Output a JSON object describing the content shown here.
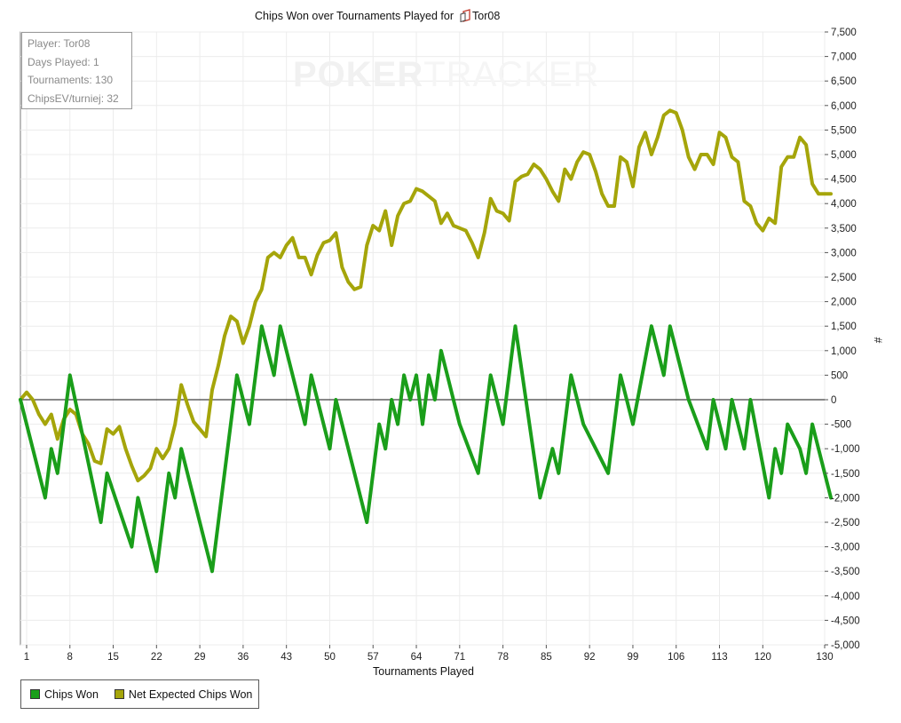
{
  "chart_data": {
    "type": "line",
    "title": "Chips Won over Tournaments Played for",
    "title_player": "Tor08",
    "watermark": {
      "part1": "POKER",
      "part2": "TRACKER"
    },
    "xlabel": "Tournaments Played",
    "ylabel": "#",
    "x_ticks": [
      1,
      8,
      15,
      22,
      29,
      36,
      43,
      50,
      57,
      64,
      71,
      78,
      85,
      92,
      99,
      106,
      113,
      120,
      130
    ],
    "xlim": [
      0,
      130
    ],
    "ylim": [
      -5000,
      7500
    ],
    "y_ticks": [
      -5000,
      -4500,
      -4000,
      -3500,
      -3000,
      -2500,
      -2000,
      -1500,
      -1000,
      -500,
      0,
      500,
      1000,
      1500,
      2000,
      2500,
      3000,
      3500,
      4000,
      4500,
      5000,
      5500,
      6000,
      6500,
      7000,
      7500
    ],
    "y_tick_labels": [
      "-5,000",
      "-4,500",
      "-4,000",
      "-3,500",
      "-3,000",
      "-2,500",
      "-2,000",
      "-1,500",
      "-1,000",
      "-500",
      "0",
      "500",
      "1,000",
      "1,500",
      "2,000",
      "2,500",
      "3,000",
      "3,500",
      "4,000",
      "4,500",
      "5,000",
      "5,500",
      "6,000",
      "6,500",
      "7,000",
      "7,500"
    ],
    "grid": true,
    "legend_position": "bottom-left",
    "info": {
      "player": "Player: Tor08",
      "days": "Days Played: 1",
      "tournaments": "Tournaments: 130",
      "chipsev": "ChipsEV/turniej: 32"
    },
    "series": [
      {
        "name": "Chips Won",
        "color": "#1a9e1a",
        "x": [
          0,
          4,
          5,
          6,
          8,
          13,
          14,
          18,
          19,
          22,
          24,
          25,
          26,
          31,
          35,
          37,
          39,
          41,
          42,
          46,
          47,
          50,
          51,
          56,
          58,
          59,
          60,
          61,
          62,
          63,
          64,
          65,
          66,
          67,
          68,
          69,
          70,
          71,
          74,
          76,
          78,
          80,
          84,
          86,
          87,
          89,
          91,
          95,
          97,
          99,
          102,
          104,
          105,
          108,
          111,
          112,
          114,
          115,
          117,
          118,
          121,
          122,
          123,
          124,
          126,
          127,
          128,
          131
        ],
        "y": [
          0,
          -2000,
          -1000,
          -1500,
          500,
          -2500,
          -1500,
          -3000,
          -2000,
          -3500,
          -1500,
          -2000,
          -1000,
          -3500,
          500,
          -500,
          1500,
          500,
          1500,
          -500,
          500,
          -1000,
          0,
          -2500,
          -500,
          -1000,
          0,
          -500,
          500,
          0,
          500,
          -500,
          500,
          0,
          1000,
          500,
          0,
          -500,
          -1500,
          500,
          -500,
          1500,
          -2000,
          -1000,
          -1500,
          500,
          -500,
          -1500,
          500,
          -500,
          1500,
          500,
          1500,
          0,
          -1000,
          0,
          -1000,
          0,
          -1000,
          0,
          -2000,
          -1000,
          -1500,
          -500,
          -1000,
          -1500,
          -500,
          -2000
        ]
      },
      {
        "name": "Net Expected Chips Won",
        "color": "#a5a50a",
        "x": [
          0,
          1,
          2,
          3,
          4,
          5,
          6,
          7,
          8,
          9,
          10,
          11,
          12,
          13,
          14,
          15,
          16,
          17,
          18,
          19,
          20,
          21,
          22,
          23,
          24,
          25,
          26,
          27,
          28,
          29,
          30,
          31,
          32,
          33,
          34,
          35,
          36,
          37,
          38,
          39,
          40,
          41,
          42,
          43,
          44,
          45,
          46,
          47,
          48,
          49,
          50,
          51,
          52,
          53,
          54,
          55,
          56,
          57,
          58,
          59,
          60,
          61,
          62,
          63,
          64,
          65,
          66,
          67,
          68,
          69,
          70,
          71,
          72,
          73,
          74,
          75,
          76,
          77,
          78,
          79,
          80,
          81,
          82,
          83,
          84,
          85,
          86,
          87,
          88,
          89,
          90,
          91,
          92,
          93,
          94,
          95,
          96,
          97,
          98,
          99,
          100,
          101,
          102,
          103,
          104,
          105,
          106,
          107,
          108,
          109,
          110,
          111,
          112,
          113,
          114,
          115,
          116,
          117,
          118,
          119,
          120,
          121,
          122,
          123,
          124,
          125,
          126,
          127,
          128,
          129,
          130,
          131
        ],
        "y": [
          0,
          150,
          0,
          -300,
          -500,
          -300,
          -800,
          -400,
          -200,
          -300,
          -700,
          -900,
          -1250,
          -1300,
          -600,
          -700,
          -550,
          -1000,
          -1350,
          -1650,
          -1550,
          -1400,
          -1000,
          -1200,
          -1000,
          -500,
          300,
          -100,
          -450,
          -600,
          -750,
          200,
          700,
          1300,
          1700,
          1600,
          1150,
          1500,
          2000,
          2250,
          2900,
          3000,
          2900,
          3150,
          3300,
          2900,
          2900,
          2550,
          2950,
          3200,
          3250,
          3400,
          2700,
          2400,
          2250,
          2300,
          3150,
          3550,
          3450,
          3850,
          3150,
          3750,
          4000,
          4050,
          4300,
          4250,
          4150,
          4050,
          3600,
          3800,
          3550,
          3500,
          3450,
          3200,
          2900,
          3400,
          4100,
          3850,
          3800,
          3650,
          4450,
          4550,
          4600,
          4800,
          4700,
          4500,
          4250,
          4050,
          4700,
          4500,
          4850,
          5050,
          5000,
          4650,
          4200,
          3950,
          3950,
          4950,
          4850,
          4350,
          5150,
          5450,
          5000,
          5350,
          5800,
          5900,
          5850,
          5500,
          4950,
          4700,
          5000,
          5000,
          4800,
          5450,
          5350,
          4950,
          4850,
          4050,
          3950,
          3600,
          3450,
          3700,
          3600,
          4750,
          4950,
          4950,
          5350,
          5200,
          4400,
          4200,
          4200,
          4200
        ]
      }
    ]
  }
}
